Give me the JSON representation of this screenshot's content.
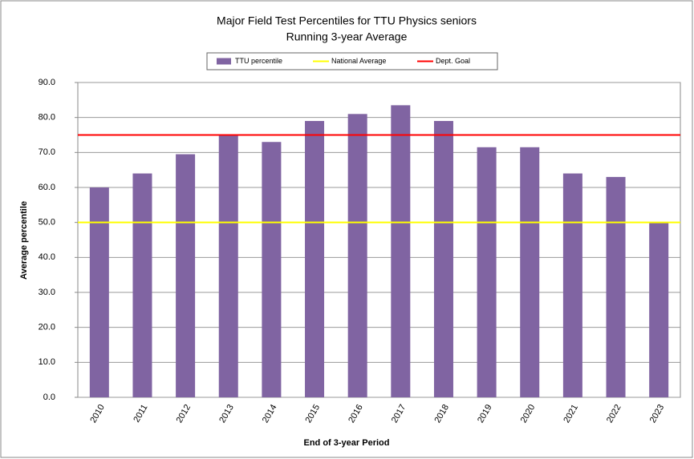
{
  "chart_data": {
    "type": "bar",
    "title": "Major Field Test Percentiles for TTU Physics seniors",
    "subtitle": "Running 3-year Average",
    "x_label": "End of 3-year Period",
    "y_label": "Average percentile",
    "categories": [
      "2010",
      "2011",
      "2012",
      "2013",
      "2014",
      "2015",
      "2016",
      "2017",
      "2018",
      "2019",
      "2020",
      "2021",
      "2022",
      "2023"
    ],
    "series": [
      {
        "name": "TTU percentile",
        "type": "bar",
        "color": "#8064a2",
        "values": [
          60,
          64,
          69.5,
          75,
          73,
          79,
          81,
          83.5,
          79,
          71.5,
          71.5,
          64,
          63,
          50
        ]
      },
      {
        "name": "National Average",
        "type": "line",
        "color": "#ffff00",
        "values": [
          50,
          50,
          50,
          50,
          50,
          50,
          50,
          50,
          50,
          50,
          50,
          50,
          50,
          50
        ]
      },
      {
        "name": "Dept. Goal",
        "type": "line",
        "color": "#ff0000",
        "values": [
          75,
          75,
          75,
          75,
          75,
          75,
          75,
          75,
          75,
          75,
          75,
          75,
          75,
          75
        ]
      }
    ],
    "ylim": [
      0,
      90
    ],
    "yticks": [
      {
        "value": 0,
        "label": "0.0"
      },
      {
        "value": 10,
        "label": "10.0"
      },
      {
        "value": 20,
        "label": "20.0"
      },
      {
        "value": 30,
        "label": "30.0"
      },
      {
        "value": 40,
        "label": "40.0"
      },
      {
        "value": 50,
        "label": "50.0"
      },
      {
        "value": 60,
        "label": "60.0"
      },
      {
        "value": 70,
        "label": "70.0"
      },
      {
        "value": 80,
        "label": "80.0"
      },
      {
        "value": 90,
        "label": "90.0"
      }
    ],
    "grid": true,
    "legend": "top"
  }
}
